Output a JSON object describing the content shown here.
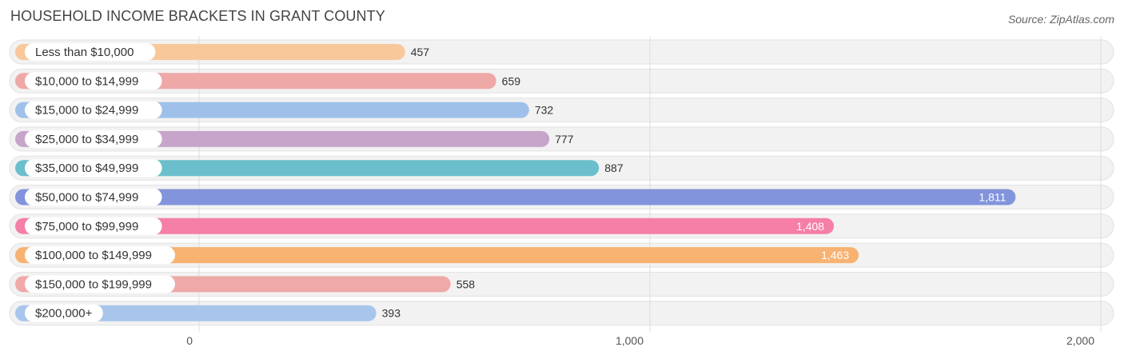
{
  "chart_data": {
    "type": "bar",
    "orientation": "horizontal",
    "title": "HOUSEHOLD INCOME BRACKETS IN GRANT COUNTY",
    "source": "Source: ZipAtlas.com",
    "categories": [
      "Less than $10,000",
      "$10,000 to $14,999",
      "$15,000 to $24,999",
      "$25,000 to $34,999",
      "$35,000 to $49,999",
      "$50,000 to $74,999",
      "$75,000 to $99,999",
      "$100,000 to $149,999",
      "$150,000 to $199,999",
      "$200,000+"
    ],
    "values": [
      457,
      659,
      732,
      777,
      887,
      1811,
      1408,
      1463,
      558,
      393
    ],
    "value_labels": [
      "457",
      "659",
      "732",
      "777",
      "887",
      "1,811",
      "1,408",
      "1,463",
      "558",
      "393"
    ],
    "colors": [
      "#f9c89a",
      "#eea8a6",
      "#9fc1e9",
      "#c7a5cb",
      "#6bbfcc",
      "#8294dc",
      "#f57fa6",
      "#f8b271",
      "#efa9a8",
      "#a8c6ec"
    ],
    "xlim": [
      0,
      2000
    ],
    "xticks": [
      0,
      1000,
      2000
    ],
    "xtick_labels": [
      "0",
      "1,000",
      "2,000"
    ],
    "grid": true,
    "legend": "none"
  }
}
